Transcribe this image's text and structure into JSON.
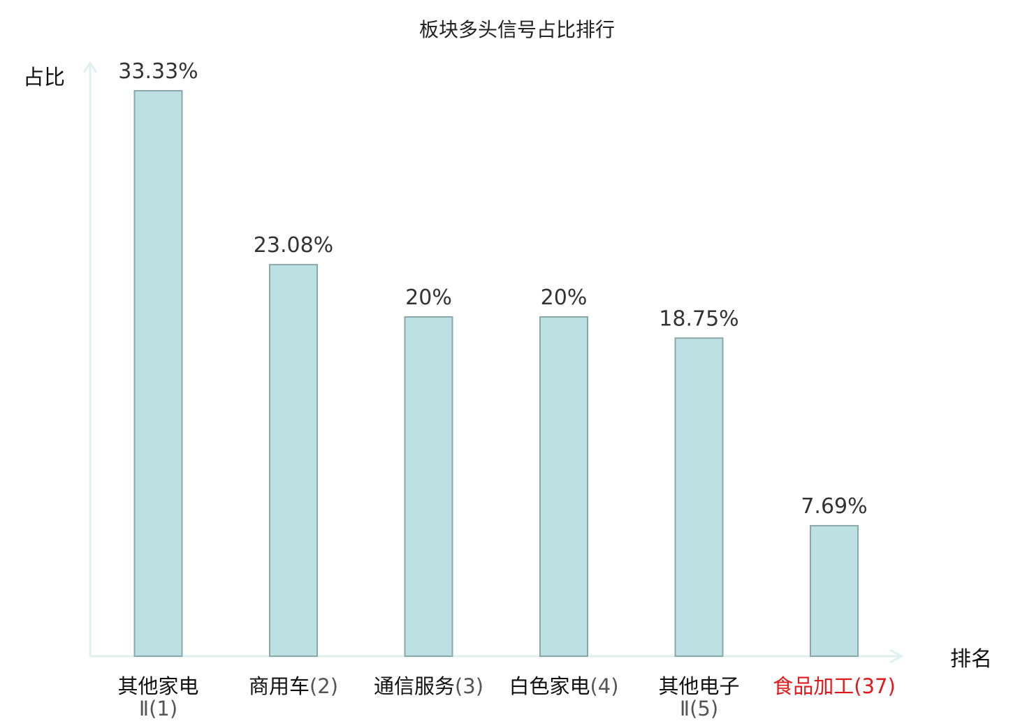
{
  "chart_data": {
    "type": "bar",
    "title": "板块多头信号占比排行",
    "ylabel": "占比",
    "xlabel": "排名",
    "ylim": [
      0,
      35
    ],
    "grid": false,
    "categories": [
      {
        "name_line1": "其他家电",
        "name_line2": "Ⅱ",
        "rank": "(1)",
        "highlight": false
      },
      {
        "name_line1": "商用车",
        "name_line2": "",
        "rank": "(2)",
        "highlight": false
      },
      {
        "name_line1": "通信服务",
        "name_line2": "",
        "rank": "(3)",
        "highlight": false
      },
      {
        "name_line1": "白色家电",
        "name_line2": "",
        "rank": "(4)",
        "highlight": false
      },
      {
        "name_line1": "其他电子",
        "name_line2": "Ⅱ",
        "rank": "(5)",
        "highlight": false
      },
      {
        "name_line1": "食品加工",
        "name_line2": "",
        "rank": "(37)",
        "highlight": true
      }
    ],
    "values": [
      33.33,
      23.08,
      20,
      20,
      18.75,
      7.69
    ],
    "value_labels": [
      "33.33%",
      "23.08%",
      "20%",
      "20%",
      "18.75%",
      "7.69%"
    ]
  },
  "colors": {
    "bar_fill": "#bde0e3",
    "bar_stroke": "#8aa8aa",
    "axis": "#dff1ef",
    "highlight": "#e0191c",
    "text": "#111111"
  }
}
